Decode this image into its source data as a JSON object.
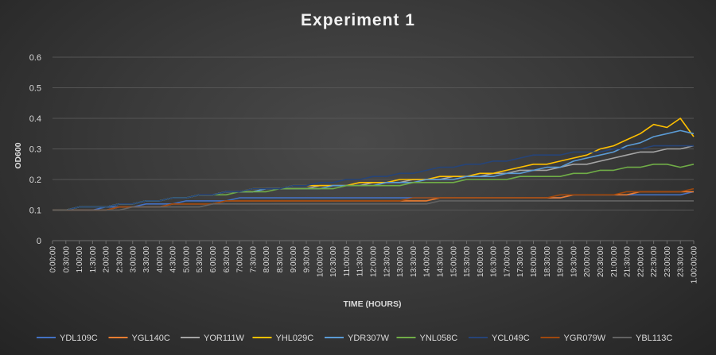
{
  "chart_data": {
    "type": "line",
    "title": "Experiment 1",
    "xlabel": "TIME (HOURS)",
    "ylabel": "OD600",
    "ylim": [
      0,
      0.6
    ],
    "yticks": [
      "0",
      "0.1",
      "0.2",
      "0.3",
      "0.4",
      "0.5",
      "0.6"
    ],
    "grid": true,
    "legend_position": "bottom",
    "x_unit": "hours",
    "categories": [
      "0:00:00",
      "0:30:00",
      "1:00:00",
      "1:30:00",
      "2:00:00",
      "2:30:00",
      "3:00:00",
      "3:30:00",
      "4:00:00",
      "4:30:00",
      "5:00:00",
      "5:30:00",
      "6:00:00",
      "6:30:00",
      "7:00:00",
      "7:30:00",
      "8:00:00",
      "8:30:00",
      "9:00:00",
      "9:30:00",
      "10:00:00",
      "10:30:00",
      "11:00:00",
      "11:30:00",
      "12:00:00",
      "12:30:00",
      "13:00:00",
      "13:30:00",
      "14:00:00",
      "14:30:00",
      "15:00:00",
      "15:30:00",
      "16:00:00",
      "16:30:00",
      "17:00:00",
      "17:30:00",
      "18:00:00",
      "18:30:00",
      "19:00:00",
      "19:30:00",
      "20:00:00",
      "20:30:00",
      "21:00:00",
      "21:30:00",
      "22:00:00",
      "22:30:00",
      "23:00:00",
      "23:30:00",
      "1.00:00:00"
    ],
    "series": [
      {
        "name": "YDL109C",
        "color": "#4472c4",
        "values": [
          0.1,
          0.1,
          0.1,
          0.1,
          0.11,
          0.11,
          0.11,
          0.12,
          0.12,
          0.12,
          0.13,
          0.13,
          0.13,
          0.13,
          0.14,
          0.14,
          0.14,
          0.14,
          0.14,
          0.14,
          0.14,
          0.14,
          0.14,
          0.14,
          0.14,
          0.14,
          0.14,
          0.14,
          0.14,
          0.14,
          0.14,
          0.14,
          0.14,
          0.14,
          0.14,
          0.14,
          0.14,
          0.14,
          0.14,
          0.15,
          0.15,
          0.15,
          0.15,
          0.15,
          0.15,
          0.15,
          0.15,
          0.15,
          0.16
        ]
      },
      {
        "name": "YGL140C",
        "color": "#ed7d31",
        "values": [
          0.1,
          0.1,
          0.1,
          0.1,
          0.1,
          0.11,
          0.11,
          0.11,
          0.11,
          0.12,
          0.12,
          0.12,
          0.12,
          0.13,
          0.13,
          0.13,
          0.13,
          0.13,
          0.13,
          0.13,
          0.13,
          0.13,
          0.13,
          0.13,
          0.13,
          0.13,
          0.13,
          0.13,
          0.13,
          0.14,
          0.14,
          0.14,
          0.14,
          0.14,
          0.14,
          0.14,
          0.14,
          0.14,
          0.14,
          0.15,
          0.15,
          0.15,
          0.15,
          0.15,
          0.16,
          0.16,
          0.16,
          0.16,
          0.16
        ]
      },
      {
        "name": "YOR111W",
        "color": "#a5a5a5",
        "values": [
          0.1,
          0.1,
          0.11,
          0.11,
          0.11,
          0.12,
          0.12,
          0.13,
          0.13,
          0.14,
          0.14,
          0.15,
          0.15,
          0.16,
          0.16,
          0.16,
          0.17,
          0.17,
          0.17,
          0.17,
          0.18,
          0.18,
          0.18,
          0.18,
          0.19,
          0.19,
          0.19,
          0.2,
          0.2,
          0.2,
          0.21,
          0.21,
          0.21,
          0.22,
          0.22,
          0.23,
          0.23,
          0.23,
          0.24,
          0.25,
          0.25,
          0.26,
          0.27,
          0.28,
          0.29,
          0.29,
          0.3,
          0.3,
          0.31
        ]
      },
      {
        "name": "YHL029C",
        "color": "#ffc000",
        "values": [
          0.1,
          0.1,
          0.11,
          0.11,
          0.11,
          0.12,
          0.12,
          0.13,
          0.13,
          0.14,
          0.14,
          0.15,
          0.15,
          0.16,
          0.16,
          0.17,
          0.17,
          0.17,
          0.18,
          0.18,
          0.18,
          0.18,
          0.18,
          0.19,
          0.19,
          0.19,
          0.2,
          0.2,
          0.2,
          0.21,
          0.21,
          0.21,
          0.22,
          0.22,
          0.23,
          0.24,
          0.25,
          0.25,
          0.26,
          0.27,
          0.28,
          0.3,
          0.31,
          0.33,
          0.35,
          0.38,
          0.37,
          0.4,
          0.34
        ]
      },
      {
        "name": "YDR307W",
        "color": "#5b9bd5",
        "values": [
          0.1,
          0.1,
          0.11,
          0.11,
          0.11,
          0.12,
          0.12,
          0.13,
          0.13,
          0.14,
          0.14,
          0.15,
          0.15,
          0.16,
          0.16,
          0.16,
          0.17,
          0.17,
          0.17,
          0.17,
          0.17,
          0.18,
          0.18,
          0.18,
          0.18,
          0.19,
          0.19,
          0.19,
          0.2,
          0.2,
          0.2,
          0.21,
          0.21,
          0.21,
          0.22,
          0.22,
          0.23,
          0.24,
          0.24,
          0.26,
          0.27,
          0.28,
          0.29,
          0.31,
          0.32,
          0.34,
          0.35,
          0.36,
          0.35
        ]
      },
      {
        "name": "YNL058C",
        "color": "#70ad47",
        "values": [
          0.1,
          0.1,
          0.11,
          0.11,
          0.11,
          0.12,
          0.12,
          0.13,
          0.13,
          0.14,
          0.14,
          0.15,
          0.15,
          0.15,
          0.16,
          0.16,
          0.16,
          0.17,
          0.17,
          0.17,
          0.17,
          0.17,
          0.18,
          0.18,
          0.18,
          0.18,
          0.18,
          0.19,
          0.19,
          0.19,
          0.19,
          0.2,
          0.2,
          0.2,
          0.2,
          0.21,
          0.21,
          0.21,
          0.21,
          0.22,
          0.22,
          0.23,
          0.23,
          0.24,
          0.24,
          0.25,
          0.25,
          0.24,
          0.25
        ]
      },
      {
        "name": "YCL049C",
        "color": "#264478",
        "values": [
          0.1,
          0.1,
          0.11,
          0.11,
          0.11,
          0.12,
          0.12,
          0.13,
          0.13,
          0.14,
          0.14,
          0.15,
          0.15,
          0.16,
          0.16,
          0.17,
          0.17,
          0.17,
          0.18,
          0.18,
          0.19,
          0.19,
          0.2,
          0.2,
          0.21,
          0.21,
          0.22,
          0.22,
          0.23,
          0.24,
          0.24,
          0.25,
          0.25,
          0.26,
          0.26,
          0.27,
          0.28,
          0.28,
          0.28,
          0.29,
          0.29,
          0.29,
          0.3,
          0.3,
          0.3,
          0.31,
          0.31,
          0.31,
          0.31
        ]
      },
      {
        "name": "YGR079W",
        "color": "#9e480e",
        "values": [
          0.1,
          0.1,
          0.1,
          0.1,
          0.1,
          0.11,
          0.11,
          0.11,
          0.11,
          0.12,
          0.12,
          0.12,
          0.12,
          0.13,
          0.13,
          0.13,
          0.13,
          0.13,
          0.13,
          0.13,
          0.13,
          0.13,
          0.13,
          0.13,
          0.13,
          0.13,
          0.13,
          0.14,
          0.14,
          0.14,
          0.14,
          0.14,
          0.14,
          0.14,
          0.14,
          0.14,
          0.14,
          0.14,
          0.15,
          0.15,
          0.15,
          0.15,
          0.15,
          0.16,
          0.16,
          0.16,
          0.16,
          0.16,
          0.17
        ]
      },
      {
        "name": "YBL113C",
        "color": "#636363",
        "values": [
          0.1,
          0.1,
          0.1,
          0.1,
          0.1,
          0.1,
          0.11,
          0.11,
          0.11,
          0.11,
          0.11,
          0.11,
          0.12,
          0.12,
          0.12,
          0.12,
          0.12,
          0.12,
          0.12,
          0.12,
          0.12,
          0.12,
          0.12,
          0.12,
          0.12,
          0.12,
          0.12,
          0.12,
          0.12,
          0.13,
          0.13,
          0.13,
          0.13,
          0.13,
          0.13,
          0.13,
          0.13,
          0.13,
          0.13,
          0.13,
          0.13,
          0.13,
          0.13,
          0.13,
          0.13,
          0.13,
          0.13,
          0.13,
          0.13
        ]
      }
    ]
  }
}
